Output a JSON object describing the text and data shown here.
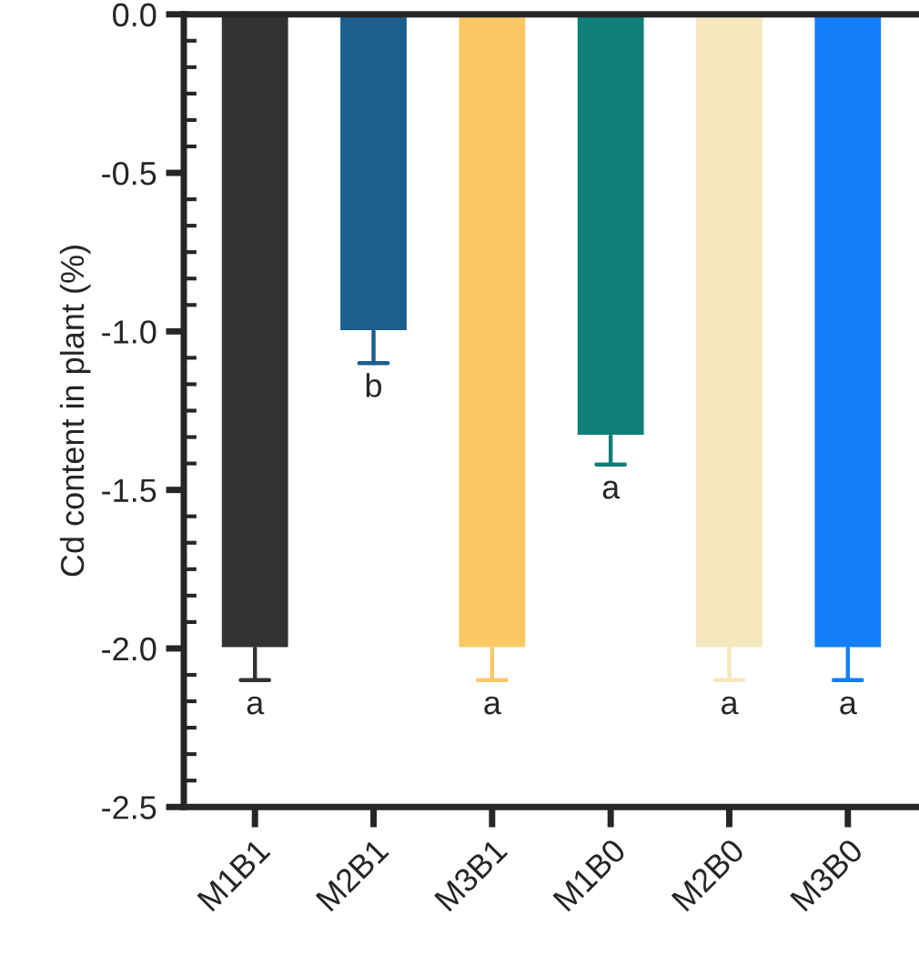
{
  "chart_data": {
    "type": "bar",
    "ylabel": "Cd content in plant (%)",
    "categories": [
      "M1B1",
      "M2B1",
      "M3B1",
      "M1B0",
      "M2B0",
      "M3B0"
    ],
    "values": [
      -2.0,
      -1.0,
      -2.0,
      -1.33,
      -2.0,
      -2.0
    ],
    "colors": [
      "#333333",
      "#1c5f8e",
      "#fbc866",
      "#117f79",
      "#f6e8bd",
      "#137ffa"
    ],
    "errors": [
      [
        -2.1,
        -2.0
      ],
      [
        -1.1,
        -1.0
      ],
      [
        -2.1,
        -2.0
      ],
      [
        -1.42,
        -1.33
      ],
      [
        -2.1,
        -2.0
      ],
      [
        -2.1,
        -2.0
      ]
    ],
    "ylim": [
      -2.5,
      0.0
    ],
    "yticks": [
      {
        "value": -2.5,
        "label": "-2.5"
      },
      {
        "value": -2.0,
        "label": "-2.0"
      },
      {
        "value": -1.5,
        "label": "-1.5"
      },
      {
        "value": -1.0,
        "label": "-1.0"
      },
      {
        "value": -0.5,
        "label": "-0.5"
      },
      {
        "value": 0.0,
        "label": "0.0"
      }
    ],
    "grid": false,
    "legend": false,
    "annotations": [
      "a",
      "b",
      "a",
      "a",
      "a",
      "a"
    ]
  }
}
